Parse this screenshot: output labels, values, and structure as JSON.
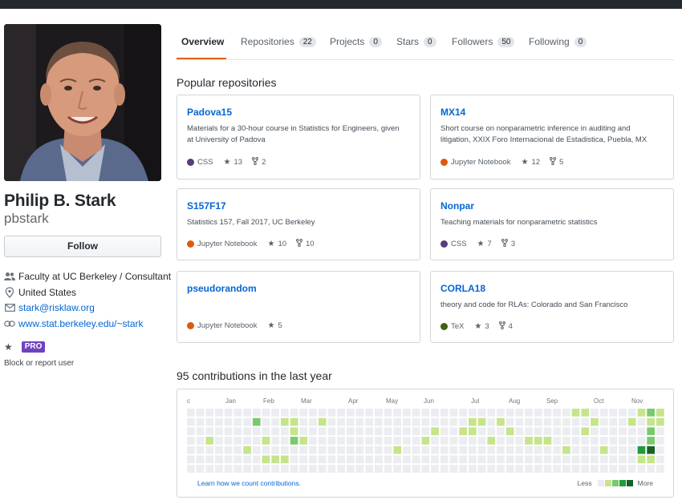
{
  "profile": {
    "name": "Philip B. Stark",
    "username": "pbstark",
    "follow_label": "Follow",
    "company": "Faculty at UC Berkeley / Consultant",
    "location": "United States",
    "email": "stark@risklaw.org",
    "website": "www.stat.berkeley.edu/~stark",
    "pro_label": "PRO",
    "block_label": "Block or report user"
  },
  "tabs": [
    {
      "label": "Overview",
      "count": ""
    },
    {
      "label": "Repositories",
      "count": "22"
    },
    {
      "label": "Projects",
      "count": "0"
    },
    {
      "label": "Stars",
      "count": "0"
    },
    {
      "label": "Followers",
      "count": "50"
    },
    {
      "label": "Following",
      "count": "0"
    }
  ],
  "popular": {
    "title": "Popular repositories",
    "repos": [
      {
        "name": "Padova15",
        "desc": "Materials for a 30-hour course in Statistics for Engineers, given at University of Padova",
        "lang": "CSS",
        "lang_color": "#563d7c",
        "stars": "13",
        "forks": "2"
      },
      {
        "name": "MX14",
        "desc": "Short course on nonparametric inference in auditing and litigation, XXIX Foro Internacional de Estadistica, Puebla, MX",
        "lang": "Jupyter Notebook",
        "lang_color": "#DA5B0B",
        "stars": "12",
        "forks": "5"
      },
      {
        "name": "S157F17",
        "desc": "Statistics 157, Fall 2017, UC Berkeley",
        "lang": "Jupyter Notebook",
        "lang_color": "#DA5B0B",
        "stars": "10",
        "forks": "10"
      },
      {
        "name": "Nonpar",
        "desc": "Teaching materials for nonparametric statistics",
        "lang": "CSS",
        "lang_color": "#563d7c",
        "stars": "7",
        "forks": "3"
      },
      {
        "name": "pseudorandom",
        "desc": "",
        "lang": "Jupyter Notebook",
        "lang_color": "#DA5B0B",
        "stars": "5",
        "forks": ""
      },
      {
        "name": "CORLA18",
        "desc": "theory and code for RLAs: Colorado and San Francisco",
        "lang": "TeX",
        "lang_color": "#3D6117",
        "stars": "3",
        "forks": "4"
      }
    ]
  },
  "contributions": {
    "title": "95 contributions in the last year",
    "months": [
      "c",
      "Jan",
      "Feb",
      "Mar",
      "Apr",
      "May",
      "Jun",
      "Jul",
      "Aug",
      "Sep",
      "Oct",
      "Nov"
    ],
    "learn_link": "Learn how we count contributions.",
    "less_label": "Less",
    "more_label": "More",
    "colors": [
      "#ebedf0",
      "#c6e48b",
      "#7bc96f",
      "#239a3b",
      "#196127"
    ]
  }
}
